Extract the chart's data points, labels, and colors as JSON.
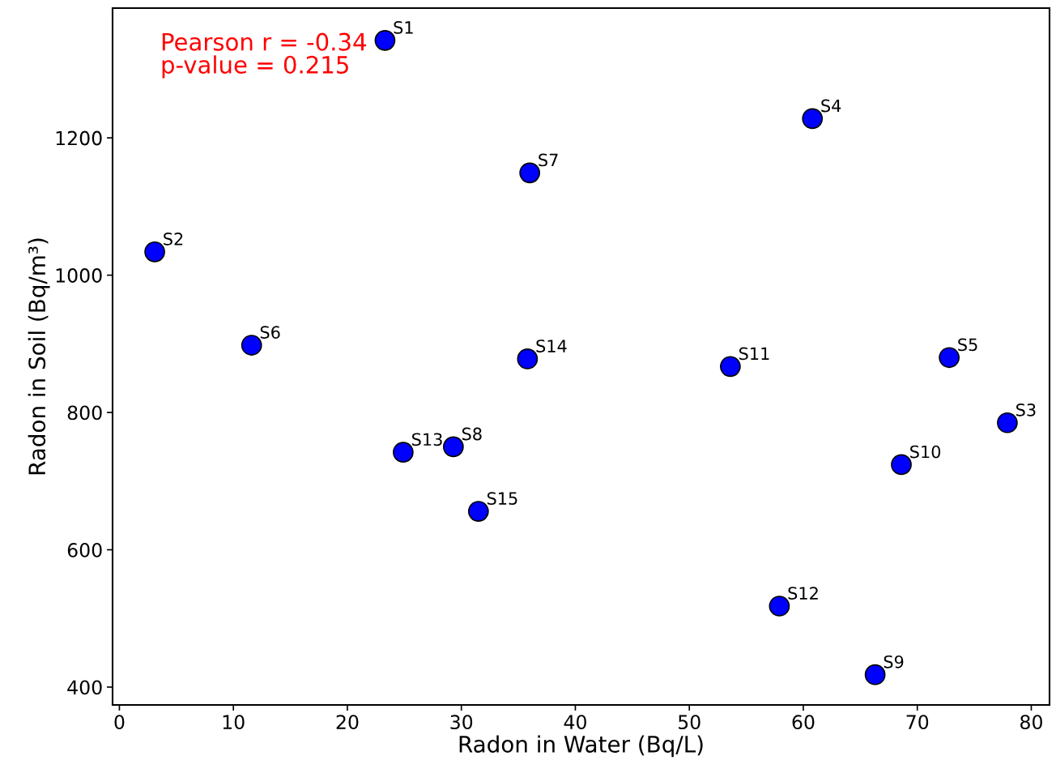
{
  "chart_data": {
    "type": "scatter",
    "xlabel": "Radon in Water (Bq/L)",
    "ylabel": "Radon in Soil (Bq/m³)",
    "x": [
      23.3,
      3.1,
      77.9,
      60.8,
      72.8,
      11.6,
      36.0,
      29.3,
      66.3,
      68.6,
      53.6,
      57.9,
      24.9,
      35.8,
      31.5
    ],
    "values": [
      1342,
      1034,
      785,
      1228,
      880,
      898,
      1149,
      750,
      418,
      724,
      867,
      518,
      742,
      878,
      656
    ],
    "color": "#0000ff",
    "marker": "circle",
    "grid": false,
    "legend": false,
    "xlim": [
      -0.6,
      81.6
    ],
    "ylim": [
      374,
      1389
    ],
    "xticks": [
      0,
      10,
      20,
      30,
      40,
      50,
      60,
      70,
      80
    ],
    "yticks": [
      400,
      600,
      800,
      1000,
      1200
    ],
    "annotations": [
      "Pearson r = -0.34\np-value = 0.215",
      {
        "text": "S1",
        "x": 23.3,
        "y": 1342
      },
      {
        "text": "S2",
        "x": 3.1,
        "y": 1034
      },
      {
        "text": "S3",
        "x": 77.9,
        "y": 785
      },
      {
        "text": "S4",
        "x": 60.8,
        "y": 1228
      },
      {
        "text": "S5",
        "x": 72.8,
        "y": 880
      },
      {
        "text": "S6",
        "x": 11.6,
        "y": 898
      },
      {
        "text": "S7",
        "x": 36.0,
        "y": 1149
      },
      {
        "text": "S8",
        "x": 29.3,
        "y": 750
      },
      {
        "text": "S9",
        "x": 66.3,
        "y": 418
      },
      {
        "text": "S10",
        "x": 68.6,
        "y": 724
      },
      {
        "text": "S11",
        "x": 53.6,
        "y": 867
      },
      {
        "text": "S12",
        "x": 57.9,
        "y": 518
      },
      {
        "text": "S13",
        "x": 24.9,
        "y": 742
      },
      {
        "text": "S14",
        "x": 35.8,
        "y": 878
      },
      {
        "text": "S15",
        "x": 31.5,
        "y": 656
      }
    ]
  }
}
